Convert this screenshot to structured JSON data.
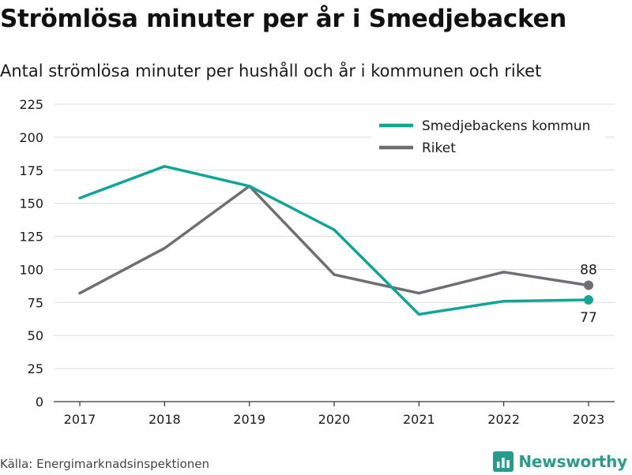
{
  "title": "Strömlösa minuter per år i Smedjebacken",
  "subtitle": "Antal strömlösa minuter per hushåll och år i kommunen och riket",
  "source": "Källa: Energimarknadsinspektionen",
  "brand": {
    "name": "Newsworthy",
    "icon": "bar-chart-logo-icon"
  },
  "colors": {
    "kommun": "#11a596",
    "riket": "#6e6e73",
    "grid": "#dcdcdc",
    "axis": "#333333"
  },
  "chart_data": {
    "type": "line",
    "title": "Strömlösa minuter per år i Smedjebacken",
    "subtitle": "Antal strömlösa minuter per hushåll och år i kommunen och riket",
    "x": [
      "2017",
      "2018",
      "2019",
      "2020",
      "2021",
      "2022",
      "2023"
    ],
    "yticks": [
      0,
      25,
      50,
      75,
      100,
      125,
      150,
      175,
      200,
      225
    ],
    "ylim": [
      0,
      225
    ],
    "grid": true,
    "legend_position": "top-right",
    "series": [
      {
        "name": "Smedjebackens kommun",
        "values": [
          154,
          178,
          163,
          130,
          66,
          76,
          77
        ],
        "color": "#11a596",
        "end_label": "77"
      },
      {
        "name": "Riket",
        "values": [
          82,
          116,
          163,
          96,
          82,
          98,
          88
        ],
        "color": "#6e6e73",
        "end_label": "88"
      }
    ]
  }
}
